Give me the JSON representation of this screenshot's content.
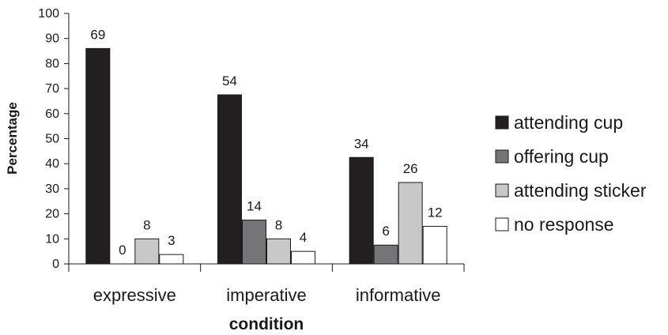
{
  "chart_data": {
    "type": "bar",
    "title": "",
    "xlabel": "condition",
    "ylabel": "Percentage",
    "ylim": [
      0,
      100
    ],
    "yticks": [
      0,
      10,
      20,
      30,
      40,
      50,
      60,
      70,
      80,
      90,
      100
    ],
    "grid": false,
    "legend_position": "right",
    "categories": [
      "expressive",
      "imperative",
      "informative"
    ],
    "series": [
      {
        "name": "attending cup",
        "color": "#231f20",
        "values": [
          86,
          67.5,
          42.5
        ],
        "labels": [
          "69",
          "54",
          "34"
        ]
      },
      {
        "name": "offering cup",
        "color": "#757577",
        "values": [
          0,
          17.5,
          7.5
        ],
        "labels": [
          "0",
          "14",
          "6"
        ]
      },
      {
        "name": "attending sticker",
        "color": "#c8c8c8",
        "values": [
          10,
          10,
          32.5
        ],
        "labels": [
          "8",
          "8",
          "26"
        ]
      },
      {
        "name": "no response",
        "color": "#ffffff",
        "values": [
          3.75,
          5,
          15
        ],
        "labels": [
          "3",
          "4",
          "12"
        ]
      }
    ]
  }
}
